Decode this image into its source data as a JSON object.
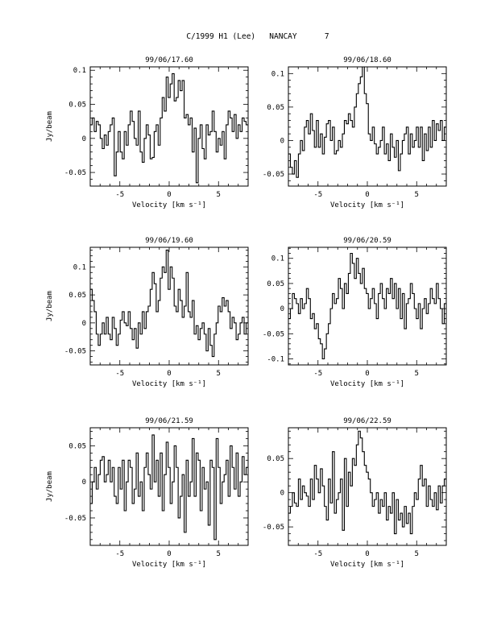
{
  "page": {
    "title": "C/1999 H1 (Lee)   NANCAY      7"
  },
  "chart_data": [
    {
      "type": "line",
      "step": true,
      "title": "99/06/17.60",
      "xlabel": "Velocity [km s⁻¹]",
      "ylabel": "Jy/beam",
      "xlim": [
        -8,
        8
      ],
      "ylim": [
        -0.07,
        0.105
      ],
      "xticks": [
        -5,
        0,
        5
      ],
      "yticks": [
        -0.05,
        0,
        0.05,
        0.1
      ],
      "ytick_labels": [
        "-0.05",
        "0",
        "0.05",
        "0.1"
      ],
      "series": [
        {
          "values": [
            0.02,
            0.03,
            0.01,
            0.025,
            0.02,
            0.0,
            -0.015,
            0.005,
            -0.01,
            0.01,
            0.02,
            0.03,
            -0.055,
            -0.02,
            0.01,
            -0.02,
            -0.03,
            0.01,
            -0.01,
            0.02,
            0.04,
            0.025,
            0.0,
            -0.01,
            0.04,
            -0.02,
            -0.035,
            0.0,
            0.02,
            0.005,
            -0.03,
            -0.028,
            0.01,
            0.02,
            -0.01,
            0.03,
            0.06,
            0.04,
            0.09,
            0.06,
            0.08,
            0.095,
            0.055,
            0.06,
            0.085,
            0.07,
            0.085,
            0.03,
            0.035,
            0.02,
            0.03,
            -0.02,
            0.015,
            -0.065,
            0.0,
            0.02,
            -0.015,
            -0.03,
            0.02,
            0.005,
            0.01,
            0.04,
            0.01,
            -0.02,
            0.0,
            -0.01,
            0.01,
            -0.03,
            0.02,
            0.04,
            0.03,
            0.01,
            0.035,
            0.0,
            0.02,
            0.01,
            0.03,
            0.025,
            0.02
          ]
        }
      ]
    },
    {
      "type": "line",
      "step": true,
      "title": "99/06/18.60",
      "xlabel": "Velocity [km s⁻¹]",
      "ylabel": "",
      "xlim": [
        -8,
        8
      ],
      "ylim": [
        -0.068,
        0.11
      ],
      "xticks": [
        -5,
        0,
        5
      ],
      "yticks": [
        -0.05,
        0,
        0.05,
        0.1
      ],
      "ytick_labels": [
        "-0.05",
        "0",
        "0.05",
        "0.1"
      ],
      "series": [
        {
          "values": [
            -0.02,
            -0.04,
            -0.05,
            -0.03,
            -0.055,
            -0.02,
            0.0,
            -0.015,
            0.02,
            0.03,
            0.01,
            0.04,
            0.015,
            -0.01,
            0.03,
            -0.01,
            0.01,
            -0.02,
            0.005,
            0.025,
            0.03,
            0.0,
            0.02,
            -0.02,
            -0.015,
            0.0,
            -0.01,
            0.01,
            0.03,
            0.025,
            0.04,
            0.03,
            0.02,
            0.05,
            0.07,
            0.085,
            0.095,
            0.11,
            0.07,
            0.055,
            0.01,
            0.0,
            0.02,
            -0.005,
            -0.02,
            -0.01,
            0.0,
            0.02,
            -0.02,
            -0.005,
            -0.03,
            0.01,
            -0.01,
            -0.025,
            0.0,
            -0.045,
            -0.02,
            0.0,
            0.01,
            0.02,
            -0.02,
            0.01,
            -0.01,
            0.0,
            0.02,
            -0.01,
            0.02,
            -0.03,
            0.01,
            -0.015,
            0.02,
            -0.01,
            0.03,
            0.0,
            0.025,
            0.015,
            0.03,
            0.0,
            0.02
          ]
        }
      ]
    },
    {
      "type": "line",
      "step": true,
      "title": "99/06/19.60",
      "xlabel": "Velocity [km s⁻¹]",
      "ylabel": "Jy/beam",
      "xlim": [
        -8,
        8
      ],
      "ylim": [
        -0.075,
        0.135
      ],
      "xticks": [
        -5,
        0,
        5
      ],
      "yticks": [
        -0.05,
        0,
        0.05,
        0.1
      ],
      "ytick_labels": [
        "-0.05",
        "0",
        "0.05",
        "0.1"
      ],
      "series": [
        {
          "values": [
            0.06,
            0.04,
            0.02,
            -0.02,
            -0.04,
            -0.02,
            0.0,
            -0.02,
            0.01,
            -0.02,
            -0.03,
            0.01,
            -0.01,
            -0.04,
            -0.02,
            0.005,
            0.02,
            0.0,
            -0.005,
            0.02,
            -0.01,
            -0.03,
            -0.01,
            -0.045,
            0.0,
            -0.02,
            0.02,
            -0.01,
            0.02,
            0.03,
            0.06,
            0.09,
            0.07,
            0.02,
            0.04,
            0.08,
            0.1,
            0.09,
            0.13,
            0.06,
            0.1,
            0.08,
            0.03,
            0.02,
            0.06,
            0.04,
            0.01,
            0.03,
            0.09,
            0.02,
            0.01,
            0.04,
            -0.02,
            -0.005,
            -0.03,
            -0.01,
            0.0,
            -0.02,
            -0.05,
            -0.01,
            -0.04,
            -0.06,
            -0.02,
            0.0,
            0.03,
            0.02,
            0.045,
            0.03,
            0.04,
            0.02,
            -0.01,
            0.01,
            0.0,
            -0.03,
            -0.02,
            0.0,
            0.01,
            -0.02,
            0.0
          ]
        }
      ]
    },
    {
      "type": "line",
      "step": true,
      "title": "99/06/20.59",
      "xlabel": "Velocity [km s⁻¹]",
      "ylabel": "",
      "xlim": [
        -8,
        8
      ],
      "ylim": [
        -0.112,
        0.122
      ],
      "xticks": [
        -5,
        0,
        5
      ],
      "yticks": [
        -0.1,
        -0.05,
        0,
        0.05,
        0.1
      ],
      "ytick_labels": [
        "-0.1",
        "-0.05",
        "0",
        "0.05",
        "0.1"
      ],
      "series": [
        {
          "values": [
            -0.02,
            0.0,
            0.03,
            0.02,
            0.01,
            -0.01,
            0.02,
            0.0,
            0.01,
            0.04,
            0.02,
            -0.02,
            -0.01,
            -0.04,
            -0.03,
            -0.06,
            -0.07,
            -0.1,
            -0.08,
            -0.05,
            -0.03,
            0.0,
            0.03,
            0.01,
            0.02,
            0.06,
            0.04,
            0.0,
            0.05,
            0.03,
            0.07,
            0.11,
            0.09,
            0.06,
            0.1,
            0.07,
            0.05,
            0.08,
            0.04,
            0.03,
            0.0,
            0.02,
            0.04,
            0.01,
            -0.02,
            0.03,
            0.05,
            0.02,
            0.0,
            0.04,
            0.03,
            0.06,
            0.02,
            0.05,
            0.0,
            0.04,
            -0.02,
            0.03,
            -0.04,
            0.01,
            0.02,
            0.05,
            0.03,
            0.0,
            -0.02,
            0.01,
            -0.04,
            0.0,
            0.02,
            -0.01,
            0.01,
            0.04,
            0.02,
            0.01,
            0.05,
            0.02,
            0.0,
            -0.03,
            0.01
          ]
        }
      ]
    },
    {
      "type": "line",
      "step": true,
      "title": "99/06/21.59",
      "xlabel": "Velocity [km s⁻¹]",
      "ylabel": "Jy/beam",
      "xlim": [
        -8,
        8
      ],
      "ylim": [
        -0.088,
        0.075
      ],
      "xticks": [
        -5,
        0,
        5
      ],
      "yticks": [
        -0.05,
        0,
        0.05
      ],
      "ytick_labels": [
        "-0.05",
        "0",
        "0.05"
      ],
      "series": [
        {
          "values": [
            -0.03,
            0.0,
            0.02,
            -0.01,
            0.01,
            0.03,
            0.035,
            0.0,
            0.01,
            0.03,
            0.0,
            0.02,
            -0.02,
            -0.03,
            0.02,
            -0.01,
            0.03,
            -0.04,
            0.0,
            0.03,
            0.02,
            -0.03,
            -0.01,
            0.04,
            -0.02,
            0.0,
            -0.04,
            0.02,
            0.04,
            0.01,
            -0.01,
            0.065,
            0.0,
            0.03,
            -0.02,
            0.04,
            -0.04,
            0.01,
            0.055,
            0.02,
            -0.03,
            0.0,
            0.05,
            0.02,
            -0.05,
            -0.02,
            0.01,
            -0.07,
            0.03,
            -0.02,
            0.0,
            0.06,
            -0.02,
            0.04,
            0.03,
            -0.04,
            0.02,
            -0.01,
            0.0,
            -0.06,
            0.03,
            0.02,
            -0.08,
            0.06,
            0.02,
            -0.03,
            0.0,
            0.01,
            0.03,
            -0.02,
            0.05,
            0.02,
            -0.01,
            0.04,
            -0.02,
            0.0,
            0.035,
            0.01,
            0.02
          ]
        }
      ]
    },
    {
      "type": "line",
      "step": true,
      "title": "99/06/22.59",
      "xlabel": "Velocity [km s⁻¹]",
      "ylabel": "",
      "xlim": [
        -8,
        8
      ],
      "ylim": [
        -0.077,
        0.095
      ],
      "xticks": [
        -5,
        0,
        5
      ],
      "yticks": [
        -0.05,
        0,
        0.05
      ],
      "ytick_labels": [
        "-0.05",
        "0",
        "0.05"
      ],
      "series": [
        {
          "values": [
            -0.03,
            -0.02,
            0.0,
            -0.015,
            -0.02,
            0.02,
            -0.01,
            0.01,
            0.0,
            -0.005,
            -0.02,
            0.02,
            -0.01,
            0.04,
            0.02,
            0.0,
            0.035,
            0.01,
            -0.02,
            -0.04,
            0.02,
            -0.015,
            0.06,
            -0.03,
            -0.01,
            0.0,
            0.02,
            -0.055,
            0.05,
            -0.02,
            0.03,
            0.01,
            0.05,
            0.04,
            0.07,
            0.09,
            0.08,
            0.06,
            0.04,
            0.03,
            0.02,
            0.0,
            -0.02,
            -0.01,
            0.0,
            -0.03,
            -0.01,
            -0.02,
            0.0,
            -0.04,
            -0.02,
            -0.03,
            0.0,
            -0.06,
            -0.01,
            -0.04,
            -0.03,
            -0.05,
            -0.02,
            -0.045,
            -0.03,
            -0.06,
            -0.02,
            0.0,
            -0.01,
            0.02,
            0.04,
            0.01,
            0.02,
            -0.02,
            0.01,
            -0.01,
            -0.02,
            0.0,
            -0.025,
            0.01,
            -0.015,
            0.01,
            0.02
          ]
        }
      ]
    }
  ]
}
